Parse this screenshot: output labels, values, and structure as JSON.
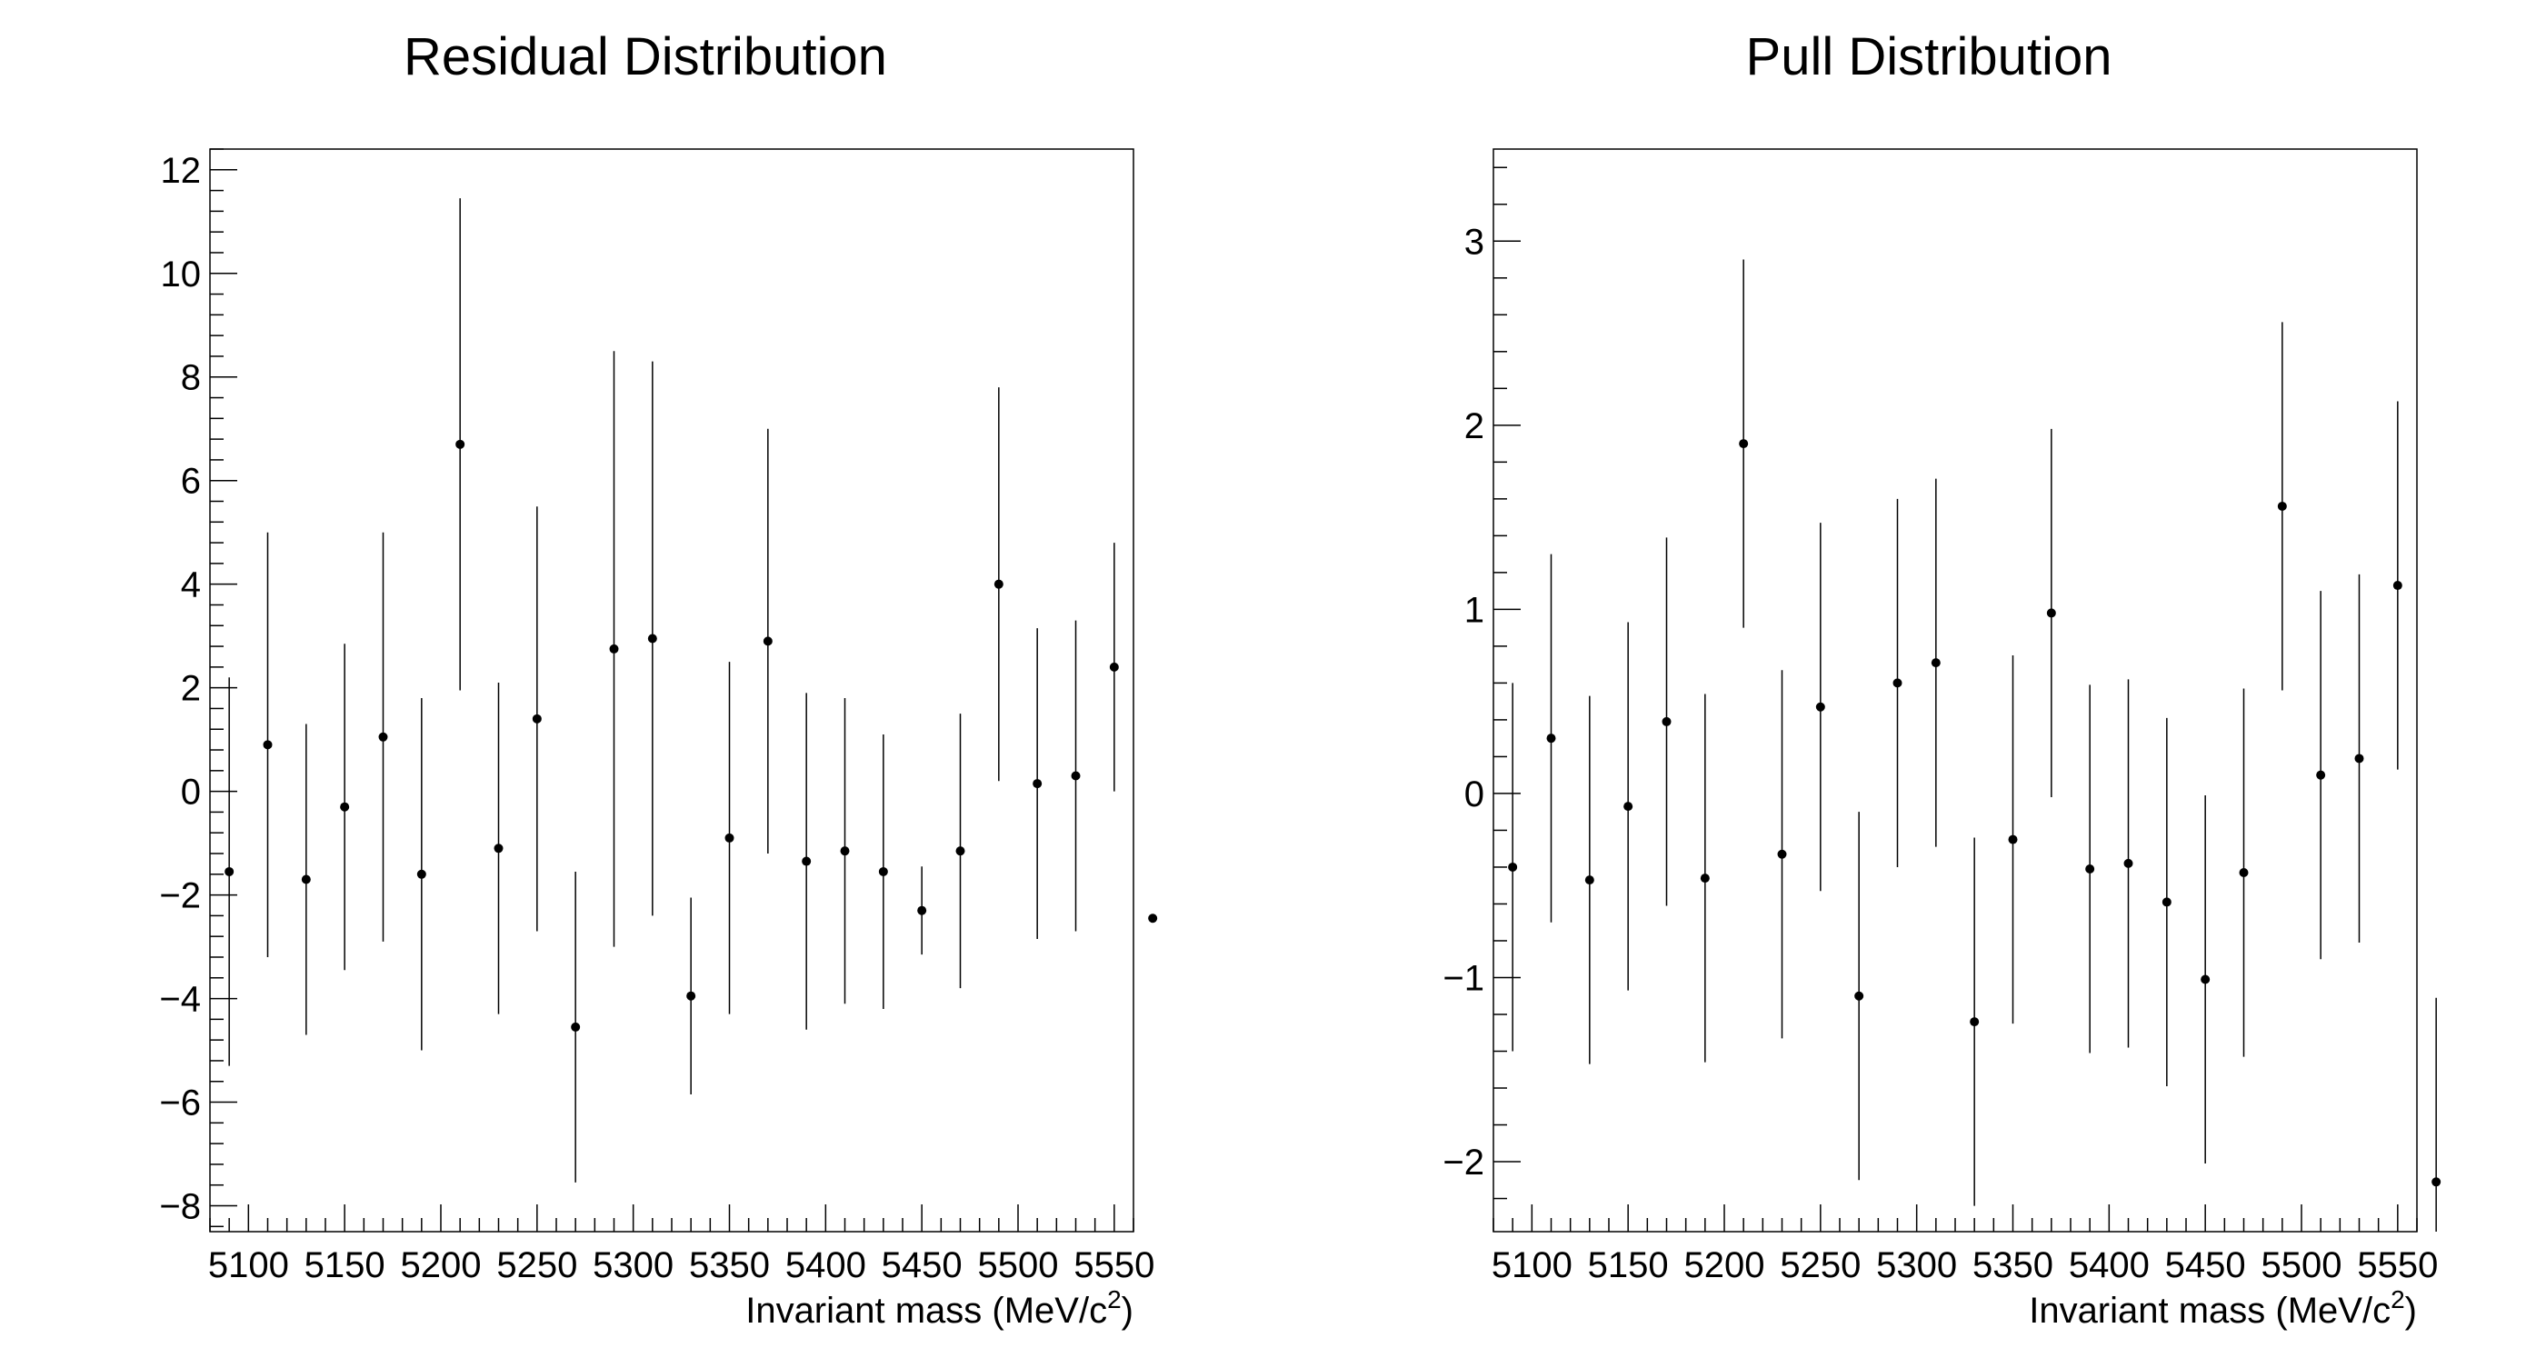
{
  "chart_data": [
    {
      "type": "scatter",
      "title": "Residual Distribution",
      "xlabel": "Invariant mass (MeV/c",
      "xlabel_superscript": "2",
      "xlabel_suffix": ")",
      "ylabel": "",
      "xlim": [
        5080,
        5560
      ],
      "ylim": [
        -8.5,
        12.4
      ],
      "xticks": [
        5100,
        5150,
        5200,
        5250,
        5300,
        5350,
        5400,
        5450,
        5500,
        5550
      ],
      "yticks": [
        -8,
        -6,
        -4,
        -2,
        0,
        2,
        4,
        6,
        8,
        10,
        12
      ],
      "ytick_labels": [
        "−8",
        "−6",
        "−4",
        "−2",
        "0",
        "2",
        "4",
        "6",
        "8",
        "10",
        "12"
      ],
      "grid": false,
      "x": [
        5090,
        5110,
        5130,
        5150,
        5170,
        5190,
        5210,
        5230,
        5250,
        5270,
        5290,
        5310,
        5330,
        5350,
        5370,
        5390,
        5410,
        5430,
        5450,
        5470,
        5490,
        5510,
        5530,
        5550,
        5570
      ],
      "y": [
        -1.55,
        0.9,
        -1.7,
        -0.3,
        1.05,
        -1.6,
        6.7,
        -1.1,
        1.4,
        -4.55,
        2.75,
        2.95,
        -3.95,
        -0.9,
        2.9,
        -1.35,
        -1.15,
        -1.55,
        -2.3,
        -1.15,
        4.0,
        0.15,
        0.3,
        2.4,
        -2.45
      ],
      "err": [
        3.75,
        4.1,
        3.0,
        3.15,
        3.95,
        3.4,
        4.75,
        3.2,
        4.1,
        3.0,
        5.75,
        5.35,
        1.9,
        3.4,
        4.1,
        3.25,
        2.95,
        2.65,
        0.85,
        2.65,
        3.8,
        3.0,
        3.0,
        2.4,
        0.0
      ]
    },
    {
      "type": "scatter",
      "title": "Pull Distribution",
      "xlabel": "Invariant mass (MeV/c",
      "xlabel_superscript": "2",
      "xlabel_suffix": ")",
      "ylabel": "",
      "xlim": [
        5080,
        5560
      ],
      "ylim": [
        -2.38,
        3.5
      ],
      "xticks": [
        5100,
        5150,
        5200,
        5250,
        5300,
        5350,
        5400,
        5450,
        5500,
        5550
      ],
      "yticks": [
        -2,
        -1,
        0,
        1,
        2,
        3
      ],
      "ytick_labels": [
        "−2",
        "−1",
        "0",
        "1",
        "2",
        "3"
      ],
      "grid": false,
      "x": [
        5090,
        5110,
        5130,
        5150,
        5170,
        5190,
        5210,
        5230,
        5250,
        5270,
        5290,
        5310,
        5330,
        5350,
        5370,
        5390,
        5410,
        5430,
        5450,
        5470,
        5490,
        5510,
        5530,
        5550,
        5570
      ],
      "y": [
        -0.4,
        0.3,
        -0.47,
        -0.07,
        0.39,
        -0.46,
        1.9,
        -0.33,
        0.47,
        -1.1,
        0.6,
        0.71,
        -1.24,
        -0.25,
        0.98,
        -0.41,
        -0.38,
        -0.59,
        -1.01,
        -0.43,
        1.56,
        0.1,
        0.19,
        1.13,
        -2.11
      ],
      "err": [
        1.0,
        1.0,
        1.0,
        1.0,
        1.0,
        1.0,
        1.0,
        1.0,
        1.0,
        1.0,
        1.0,
        1.0,
        1.0,
        1.0,
        1.0,
        1.0,
        1.0,
        1.0,
        1.0,
        1.0,
        1.0,
        1.0,
        1.0,
        1.0,
        1.0
      ]
    }
  ]
}
